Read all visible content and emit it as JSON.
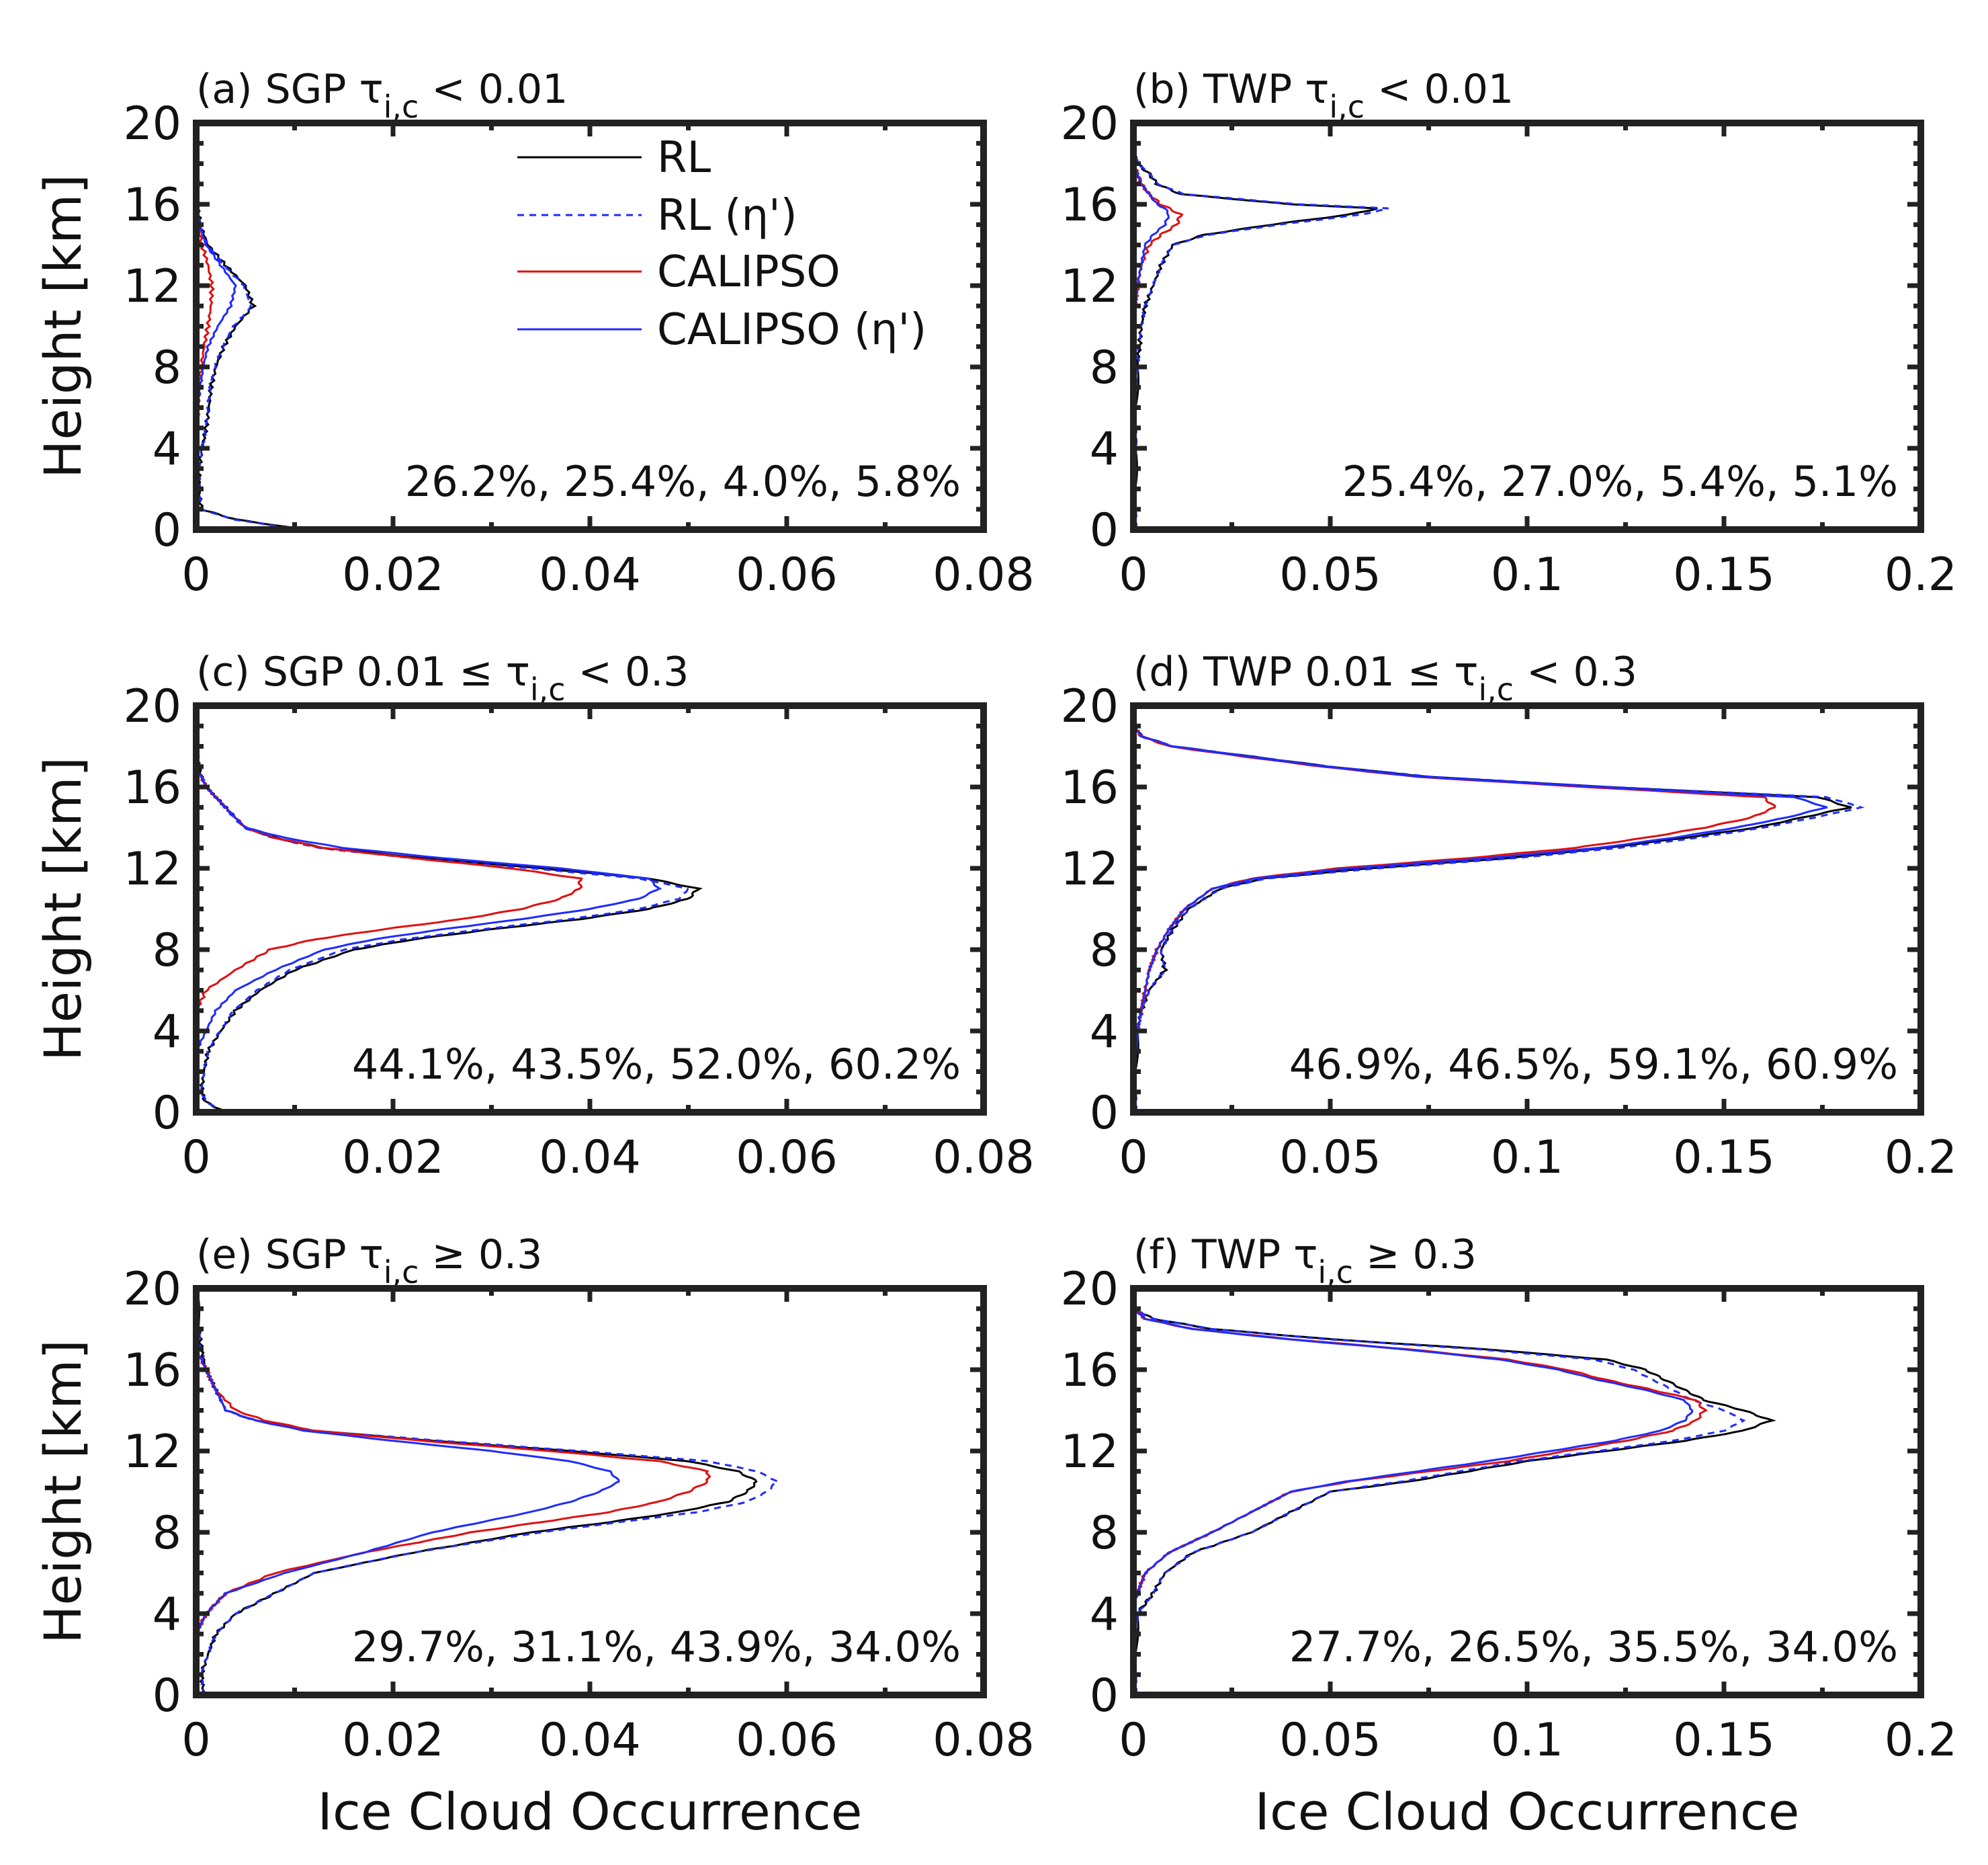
{
  "figure": {
    "x_axis_label": "Ice Cloud Occurrence",
    "y_axis_label": "Height [km]",
    "legend": [
      {
        "label": "RL",
        "color": "#000000",
        "style": "solid"
      },
      {
        "label": "RL (η')",
        "color": "#1f2bff",
        "style": "dashed"
      },
      {
        "label": "CALIPSO",
        "color": "#e01010",
        "style": "solid"
      },
      {
        "label": "CALIPSO (η')",
        "color": "#1f2bff",
        "style": "solid"
      }
    ]
  },
  "chart_data": [
    {
      "id": "a",
      "type": "line",
      "title": "(a) SGP τ",
      "title_sub": "i,c",
      "title_tail": " < 0.01",
      "xlim": [
        0,
        0.08
      ],
      "ylim": [
        0,
        20
      ],
      "xticks": [
        "0",
        "0.02",
        "0.04",
        "0.06",
        "0.08"
      ],
      "yticks": [
        "0",
        "4",
        "8",
        "12",
        "16",
        "20"
      ],
      "annotation": "26.2%, 25.4%, 4.0%, 5.8%",
      "heights": [
        0,
        0.5,
        1,
        2,
        3,
        4,
        5,
        6,
        7,
        8,
        9,
        10,
        11,
        12,
        13,
        14,
        15,
        16,
        17,
        18,
        19,
        20
      ],
      "series": [
        {
          "name": "RL",
          "values": [
            0.011,
            0.004,
            0.0005,
            0.0003,
            0.0003,
            0.0006,
            0.001,
            0.0013,
            0.0015,
            0.002,
            0.0028,
            0.004,
            0.0058,
            0.005,
            0.003,
            0.0012,
            0.0004,
            0.0001,
            0.0001,
            0,
            0,
            0
          ]
        },
        {
          "name": "RL (η')",
          "values": [
            0.0105,
            0.0038,
            0.0005,
            0.0003,
            0.0003,
            0.0006,
            0.001,
            0.0012,
            0.0014,
            0.0019,
            0.0027,
            0.0038,
            0.0056,
            0.0048,
            0.0029,
            0.0011,
            0.0004,
            0.0001,
            0.0001,
            0,
            0,
            0
          ]
        },
        {
          "name": "CALIPSO",
          "values": [
            0,
            0,
            0,
            0,
            0,
            0,
            0,
            0.0002,
            0.0003,
            0.0005,
            0.0008,
            0.0012,
            0.0015,
            0.0016,
            0.0012,
            0.0006,
            0.0002,
            0,
            0,
            0,
            0,
            0
          ]
        },
        {
          "name": "CALIPSO (η')",
          "values": [
            0,
            0,
            0,
            0,
            0,
            0,
            0,
            0.0002,
            0.0004,
            0.0007,
            0.0012,
            0.0022,
            0.0035,
            0.004,
            0.0025,
            0.001,
            0.0003,
            0,
            0,
            0,
            0,
            0
          ]
        }
      ]
    },
    {
      "id": "b",
      "type": "line",
      "title": "(b) TWP τ",
      "title_sub": "i,c",
      "title_tail": " < 0.01",
      "xlim": [
        0,
        0.2
      ],
      "ylim": [
        0,
        20
      ],
      "xticks": [
        "0",
        "0.05",
        "0.1",
        "0.15",
        "0.2"
      ],
      "yticks": [
        "0",
        "4",
        "8",
        "12",
        "16",
        "20"
      ],
      "annotation": "25.4%, 27.0%, 5.4%, 5.1%",
      "heights": [
        0,
        2,
        4,
        6,
        8,
        9,
        10,
        11,
        12,
        13,
        14,
        14.5,
        15,
        15.5,
        15.8,
        16,
        16.5,
        17,
        17.5,
        18,
        19,
        20
      ],
      "series": [
        {
          "name": "RL",
          "values": [
            0.0005,
            0.0005,
            0.0005,
            0.0006,
            0.001,
            0.0015,
            0.002,
            0.003,
            0.005,
            0.007,
            0.01,
            0.018,
            0.035,
            0.055,
            0.062,
            0.04,
            0.012,
            0.006,
            0.004,
            0.001,
            0,
            0
          ]
        },
        {
          "name": "RL (η')",
          "values": [
            0.0005,
            0.0005,
            0.0005,
            0.0006,
            0.001,
            0.0015,
            0.002,
            0.003,
            0.005,
            0.007,
            0.01,
            0.019,
            0.037,
            0.058,
            0.065,
            0.042,
            0.013,
            0.006,
            0.004,
            0.001,
            0,
            0
          ]
        },
        {
          "name": "CALIPSO",
          "values": [
            0,
            0,
            0,
            0,
            0,
            0,
            0,
            0.0005,
            0.001,
            0.002,
            0.004,
            0.007,
            0.011,
            0.012,
            0.009,
            0.007,
            0.004,
            0.002,
            0.001,
            0,
            0,
            0
          ]
        },
        {
          "name": "CALIPSO (η')",
          "values": [
            0,
            0,
            0,
            0,
            0,
            0,
            0,
            0.0005,
            0.001,
            0.002,
            0.003,
            0.005,
            0.008,
            0.009,
            0.008,
            0.006,
            0.004,
            0.002,
            0.001,
            0,
            0,
            0
          ]
        }
      ]
    },
    {
      "id": "c",
      "type": "line",
      "title": "(c) SGP 0.01 ≤ τ",
      "title_sub": "i,c",
      "title_tail": " < 0.3",
      "xlim": [
        0,
        0.08
      ],
      "ylim": [
        0,
        20
      ],
      "xticks": [
        "0",
        "0.02",
        "0.04",
        "0.06",
        "0.08"
      ],
      "yticks": [
        "0",
        "4",
        "8",
        "12",
        "16",
        "20"
      ],
      "annotation": "44.1%, 43.5%, 52.0%, 60.2%",
      "heights": [
        0,
        0.5,
        1,
        2,
        3,
        4,
        5,
        6,
        7,
        8,
        8.5,
        9,
        9.5,
        10,
        10.5,
        11,
        11.5,
        12,
        12.5,
        13,
        13.5,
        14,
        15,
        16,
        17,
        18,
        20
      ],
      "series": [
        {
          "name": "RL",
          "values": [
            0.003,
            0.001,
            0.0005,
            0.0008,
            0.0012,
            0.0025,
            0.004,
            0.0065,
            0.01,
            0.016,
            0.022,
            0.03,
            0.039,
            0.046,
            0.05,
            0.051,
            0.046,
            0.035,
            0.023,
            0.013,
            0.008,
            0.005,
            0.003,
            0.001,
            0.0002,
            0,
            0
          ]
        },
        {
          "name": "RL (η')",
          "values": [
            0.0028,
            0.001,
            0.0005,
            0.0008,
            0.0012,
            0.0024,
            0.0038,
            0.0062,
            0.0095,
            0.015,
            0.021,
            0.029,
            0.038,
            0.045,
            0.049,
            0.05,
            0.045,
            0.034,
            0.022,
            0.0125,
            0.0078,
            0.0048,
            0.0029,
            0.001,
            0.0002,
            0,
            0
          ]
        },
        {
          "name": "CALIPSO",
          "values": [
            0,
            0,
            0,
            0,
            0,
            0,
            0,
            0.001,
            0.004,
            0.0075,
            0.012,
            0.019,
            0.027,
            0.033,
            0.037,
            0.039,
            0.039,
            0.032,
            0.022,
            0.013,
            0.008,
            0.005,
            0.003,
            0.001,
            0,
            0,
            0
          ]
        },
        {
          "name": "CALIPSO (η')",
          "values": [
            0,
            0,
            0,
            0,
            0,
            0.001,
            0.002,
            0.004,
            0.008,
            0.013,
            0.018,
            0.025,
            0.033,
            0.04,
            0.045,
            0.047,
            0.046,
            0.037,
            0.025,
            0.015,
            0.009,
            0.005,
            0.003,
            0.001,
            0,
            0,
            0
          ]
        }
      ]
    },
    {
      "id": "d",
      "type": "line",
      "title": "(d) TWP 0.01 ≤ τ",
      "title_sub": "i,c",
      "title_tail": " < 0.3",
      "xlim": [
        0,
        0.2
      ],
      "ylim": [
        0,
        20
      ],
      "xticks": [
        "0",
        "0.05",
        "0.1",
        "0.15",
        "0.2"
      ],
      "yticks": [
        "0",
        "4",
        "8",
        "12",
        "16",
        "20"
      ],
      "annotation": "46.9%, 46.5%, 59.1%, 60.9%",
      "heights": [
        0,
        2,
        4,
        5,
        6,
        7,
        8,
        9,
        10,
        11,
        11.5,
        12,
        12.5,
        13,
        13.5,
        14,
        14.5,
        15,
        15.5,
        16,
        16.5,
        17,
        17.5,
        18,
        18.5,
        19,
        20
      ],
      "series": [
        {
          "name": "RL",
          "values": [
            0.0005,
            0.0005,
            0.001,
            0.002,
            0.004,
            0.008,
            0.007,
            0.01,
            0.014,
            0.022,
            0.033,
            0.06,
            0.095,
            0.12,
            0.14,
            0.158,
            0.17,
            0.182,
            0.174,
            0.12,
            0.075,
            0.05,
            0.03,
            0.01,
            0.002,
            0,
            0
          ]
        },
        {
          "name": "RL (η')",
          "values": [
            0.0005,
            0.0005,
            0.001,
            0.002,
            0.004,
            0.008,
            0.007,
            0.01,
            0.014,
            0.022,
            0.034,
            0.062,
            0.097,
            0.123,
            0.143,
            0.16,
            0.173,
            0.185,
            0.176,
            0.121,
            0.076,
            0.05,
            0.03,
            0.01,
            0.002,
            0,
            0
          ]
        },
        {
          "name": "CALIPSO",
          "values": [
            0,
            0,
            0.001,
            0.002,
            0.003,
            0.004,
            0.006,
            0.009,
            0.013,
            0.02,
            0.03,
            0.052,
            0.085,
            0.112,
            0.13,
            0.145,
            0.157,
            0.163,
            0.16,
            0.115,
            0.072,
            0.048,
            0.028,
            0.009,
            0.002,
            0,
            0
          ]
        },
        {
          "name": "CALIPSO (η')",
          "values": [
            0,
            0,
            0.001,
            0.002,
            0.003,
            0.004,
            0.006,
            0.009,
            0.013,
            0.02,
            0.031,
            0.055,
            0.09,
            0.118,
            0.137,
            0.153,
            0.166,
            0.176,
            0.168,
            0.118,
            0.073,
            0.049,
            0.029,
            0.01,
            0.002,
            0,
            0
          ]
        }
      ]
    },
    {
      "id": "e",
      "type": "line",
      "title": "(e) SGP τ",
      "title_sub": "i,c",
      "title_tail": " ≥ 0.3",
      "xlim": [
        0,
        0.08
      ],
      "ylim": [
        0,
        20
      ],
      "xticks": [
        "0",
        "0.02",
        "0.04",
        "0.06",
        "0.08"
      ],
      "yticks": [
        "0",
        "4",
        "8",
        "12",
        "16",
        "20"
      ],
      "annotation": "29.7%, 31.1%, 43.9%, 34.0%",
      "heights": [
        0,
        1,
        2,
        3,
        4,
        4.5,
        5,
        6,
        7,
        8,
        8.5,
        9,
        9.5,
        10,
        10.5,
        11,
        11.5,
        12,
        12.5,
        13,
        13.5,
        14,
        15,
        16,
        17,
        18,
        20
      ],
      "series": [
        {
          "name": "RL",
          "values": [
            0.0008,
            0.0005,
            0.0012,
            0.002,
            0.004,
            0.006,
            0.008,
            0.012,
            0.022,
            0.034,
            0.042,
            0.049,
            0.054,
            0.056,
            0.057,
            0.055,
            0.05,
            0.038,
            0.024,
            0.012,
            0.006,
            0.003,
            0.002,
            0.001,
            0.0005,
            0.0003,
            0
          ]
        },
        {
          "name": "RL (η')",
          "values": [
            0.0008,
            0.0005,
            0.0012,
            0.002,
            0.004,
            0.006,
            0.008,
            0.012,
            0.022,
            0.035,
            0.043,
            0.051,
            0.056,
            0.058,
            0.059,
            0.057,
            0.052,
            0.039,
            0.025,
            0.012,
            0.006,
            0.003,
            0.002,
            0.001,
            0.0005,
            0.0003,
            0
          ]
        },
        {
          "name": "CALIPSO",
          "values": [
            0,
            0,
            0,
            0,
            0.001,
            0.002,
            0.003,
            0.008,
            0.017,
            0.028,
            0.035,
            0.042,
            0.047,
            0.05,
            0.052,
            0.052,
            0.047,
            0.036,
            0.023,
            0.012,
            0.007,
            0.004,
            0.002,
            0.001,
            0,
            0,
            0
          ]
        },
        {
          "name": "CALIPSO (η')",
          "values": [
            0,
            0,
            0,
            0,
            0.001,
            0.002,
            0.003,
            0.009,
            0.017,
            0.024,
            0.029,
            0.034,
            0.038,
            0.041,
            0.043,
            0.042,
            0.038,
            0.03,
            0.02,
            0.011,
            0.006,
            0.003,
            0.002,
            0.001,
            0,
            0,
            0
          ]
        }
      ]
    },
    {
      "id": "f",
      "type": "line",
      "title": "(f) TWP τ",
      "title_sub": "i,c",
      "title_tail": " ≥ 0.3",
      "xlim": [
        0,
        0.2
      ],
      "ylim": [
        0,
        20
      ],
      "xticks": [
        "0",
        "0.05",
        "0.1",
        "0.15",
        "0.2"
      ],
      "yticks": [
        "0",
        "4",
        "8",
        "12",
        "16",
        "20"
      ],
      "annotation": "27.7%, 26.5%, 35.5%, 34.0%",
      "heights": [
        0,
        2,
        4,
        4.5,
        5,
        6,
        7,
        8,
        9,
        10,
        10.5,
        11,
        11.5,
        12,
        12.5,
        13,
        13.5,
        14,
        14.5,
        15,
        15.5,
        16,
        16.5,
        17,
        17.5,
        18,
        18.5,
        19,
        20
      ],
      "series": [
        {
          "name": "RL",
          "values": [
            0.0005,
            0.0005,
            0.001,
            0.003,
            0.005,
            0.008,
            0.015,
            0.03,
            0.04,
            0.05,
            0.07,
            0.085,
            0.1,
            0.12,
            0.14,
            0.155,
            0.162,
            0.155,
            0.145,
            0.14,
            0.135,
            0.13,
            0.12,
            0.09,
            0.05,
            0.02,
            0.005,
            0,
            0
          ]
        },
        {
          "name": "RL (η')",
          "values": [
            0.0005,
            0.0005,
            0.001,
            0.003,
            0.005,
            0.008,
            0.015,
            0.03,
            0.04,
            0.05,
            0.068,
            0.083,
            0.098,
            0.118,
            0.137,
            0.15,
            0.155,
            0.15,
            0.142,
            0.137,
            0.132,
            0.127,
            0.117,
            0.088,
            0.049,
            0.02,
            0.005,
            0,
            0
          ]
        },
        {
          "name": "CALIPSO",
          "values": [
            0,
            0,
            0,
            0,
            0.001,
            0.003,
            0.009,
            0.02,
            0.03,
            0.04,
            0.055,
            0.075,
            0.095,
            0.11,
            0.125,
            0.137,
            0.143,
            0.145,
            0.143,
            0.132,
            0.12,
            0.11,
            0.095,
            0.07,
            0.04,
            0.015,
            0.003,
            0,
            0
          ]
        },
        {
          "name": "CALIPSO (η')",
          "values": [
            0,
            0,
            0,
            0,
            0.001,
            0.003,
            0.009,
            0.02,
            0.03,
            0.04,
            0.054,
            0.072,
            0.09,
            0.106,
            0.122,
            0.134,
            0.14,
            0.142,
            0.14,
            0.13,
            0.118,
            0.108,
            0.093,
            0.069,
            0.039,
            0.015,
            0.003,
            0,
            0
          ]
        }
      ]
    }
  ]
}
